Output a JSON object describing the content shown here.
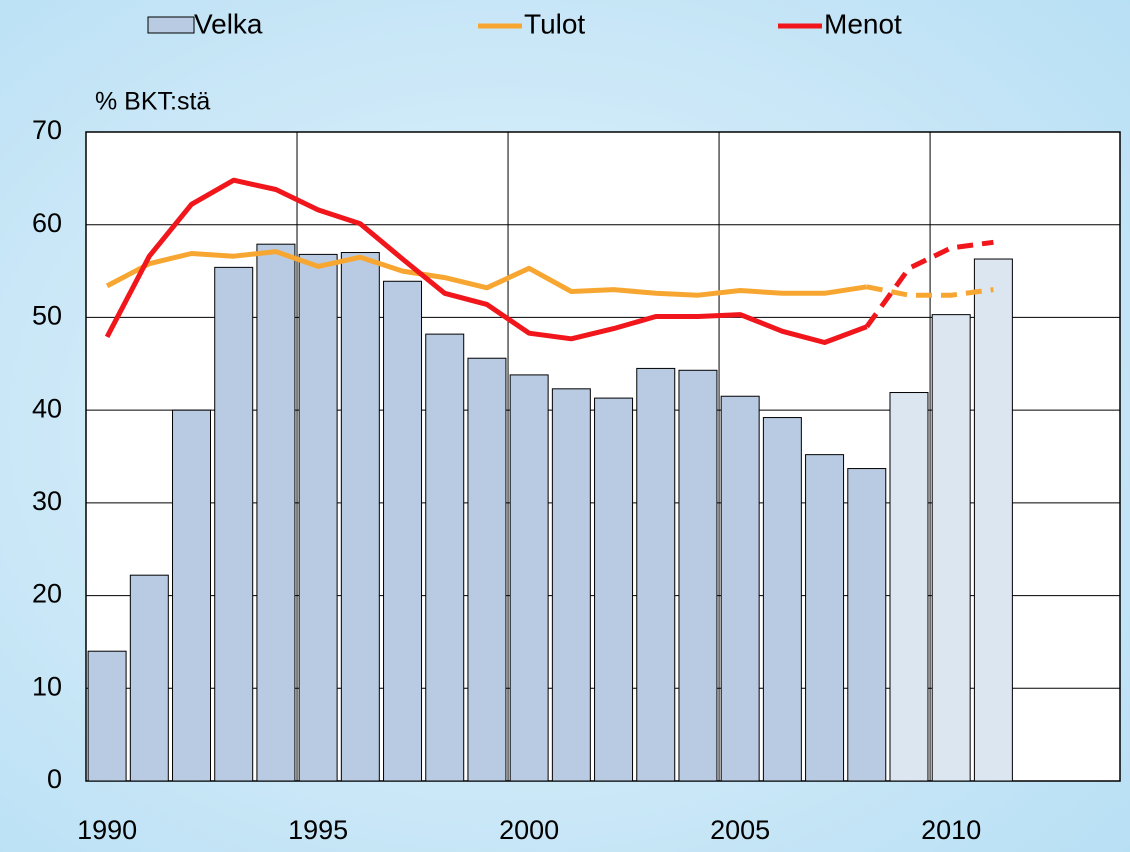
{
  "chart_data": {
    "type": "bar_line",
    "y_label": "% BKT:stä",
    "x": [
      1990,
      1991,
      1992,
      1993,
      1994,
      1995,
      1996,
      1997,
      1998,
      1999,
      2000,
      2001,
      2002,
      2003,
      2004,
      2005,
      2006,
      2007,
      2008,
      2009,
      2010,
      2011
    ],
    "xlim": [
      1989.5,
      2014
    ],
    "xticks": [
      1990,
      1995,
      2000,
      2005,
      2010
    ],
    "ylim": [
      0,
      70
    ],
    "yticks": [
      0,
      10,
      20,
      30,
      40,
      50,
      60,
      70
    ],
    "grid": true,
    "projection_start": 2009,
    "series": [
      {
        "name": "Velka",
        "kind": "bar",
        "color": "#b9cbe2",
        "projection_color": "#dce6f1",
        "values": [
          14.0,
          22.2,
          40.0,
          55.4,
          57.9,
          56.8,
          57.0,
          53.9,
          48.2,
          45.6,
          43.8,
          42.3,
          41.3,
          44.5,
          44.3,
          41.5,
          39.2,
          35.2,
          33.7,
          41.9,
          50.3,
          56.3
        ]
      },
      {
        "name": "Tulot",
        "kind": "line",
        "color": "#f7a731",
        "values": [
          53.4,
          55.8,
          56.9,
          56.6,
          57.1,
          55.5,
          56.5,
          55.0,
          54.3,
          53.2,
          55.3,
          52.8,
          53.0,
          52.6,
          52.4,
          52.9,
          52.6,
          52.6,
          53.3,
          52.4,
          52.4,
          53.0
        ]
      },
      {
        "name": "Menot",
        "kind": "line",
        "color": "#f0161b",
        "values": [
          47.9,
          56.6,
          62.2,
          64.8,
          63.8,
          61.6,
          60.1,
          56.3,
          52.6,
          51.4,
          48.3,
          47.7,
          48.8,
          50.1,
          50.1,
          50.3,
          48.5,
          47.3,
          49.0,
          55.3,
          57.5,
          58.1
        ]
      }
    ]
  }
}
